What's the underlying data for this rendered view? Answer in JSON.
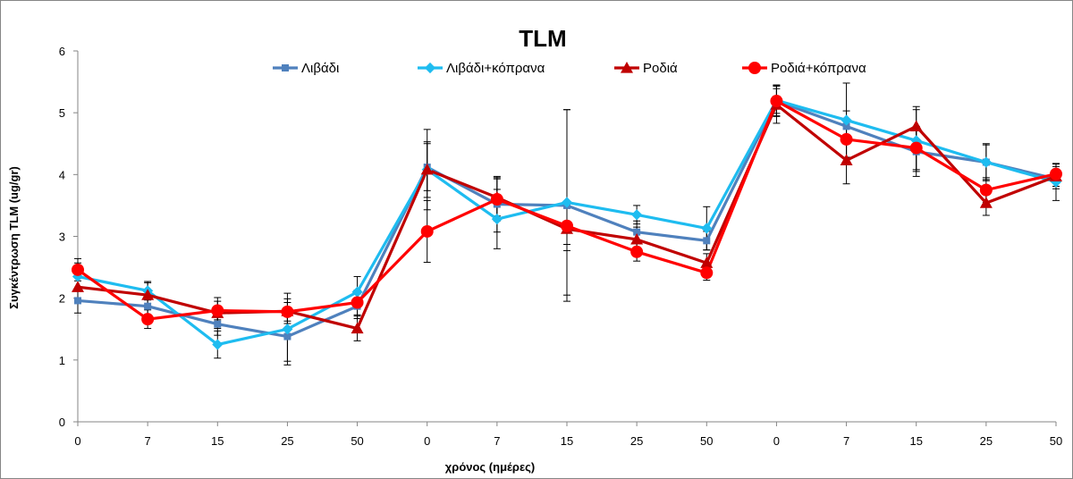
{
  "chart_data": {
    "type": "line",
    "title": "TLM",
    "xlabel": "χρόνος (ημέρες)",
    "ylabel": "Συγκέντρωση TLM (ug/gr)",
    "ylim": [
      0,
      6
    ],
    "yticks": [
      "0",
      "1",
      "2",
      "3",
      "4",
      "5",
      "6"
    ],
    "categories": [
      "0",
      "7",
      "15",
      "25",
      "50",
      "0",
      "7",
      "15",
      "25",
      "50",
      "0",
      "7",
      "15",
      "25",
      "50"
    ],
    "grid": false,
    "legend_position": "top",
    "series": [
      {
        "name": "Λιβάδι",
        "color": "#4F81BD",
        "marker": "square",
        "values": [
          1.96,
          1.87,
          1.58,
          1.38,
          1.87,
          4.12,
          3.52,
          3.5,
          3.07,
          2.93,
          5.19,
          4.78,
          4.37,
          4.2,
          3.93
        ],
        "errors": [
          0.2,
          0.15,
          0.18,
          0.4,
          0.2,
          0.38,
          0.45,
          1.55,
          0.18,
          0.15,
          0.25,
          0.25,
          0.4,
          0.28,
          0.12
        ]
      },
      {
        "name": "Λιβάδι+κόπρανα",
        "color": "#1EBCF0",
        "marker": "diamond",
        "values": [
          2.35,
          2.12,
          1.25,
          1.5,
          2.1,
          4.08,
          3.28,
          3.55,
          3.35,
          3.13,
          5.2,
          4.88,
          4.55,
          4.2,
          3.88
        ],
        "errors": [
          0.22,
          0.15,
          0.22,
          0.58,
          0.25,
          0.65,
          0.48,
          1.5,
          0.15,
          0.35,
          0.25,
          0.6,
          0.5,
          0.3,
          0.3
        ]
      },
      {
        "name": "Ροδιά",
        "color": "#C00000",
        "marker": "triangle",
        "values": [
          2.18,
          2.05,
          1.76,
          1.79,
          1.51,
          4.08,
          3.63,
          3.12,
          2.95,
          2.57,
          5.13,
          4.23,
          4.78,
          3.54,
          3.97
        ],
        "errors": [
          0.2,
          0.2,
          0.25,
          0.2,
          0.2,
          0.45,
          0.3,
          0.35,
          0.2,
          0.15,
          0.3,
          0.38,
          0.32,
          0.2,
          0.2
        ]
      },
      {
        "name": "Ροδιά+κόπρανα",
        "color": "#FF0000",
        "marker": "circle",
        "values": [
          2.46,
          1.66,
          1.8,
          1.78,
          1.93,
          3.08,
          3.6,
          3.17,
          2.75,
          2.41,
          5.19,
          4.57,
          4.43,
          3.75,
          4.01
        ],
        "errors": [
          0.18,
          0.15,
          0.15,
          0.15,
          0.2,
          0.5,
          0.35,
          0.3,
          0.15,
          0.12,
          0.2,
          0.3,
          0.35,
          0.2,
          0.12
        ]
      }
    ]
  }
}
